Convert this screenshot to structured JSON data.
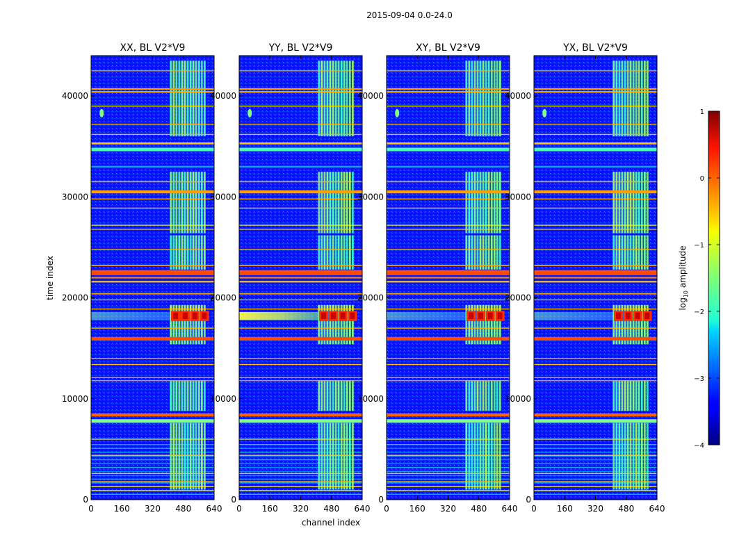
{
  "figure_title": "2015-09-04 0.0-24.0",
  "chart_data": {
    "type": "heatmap",
    "title": "2015-09-04 0.0-24.0",
    "xlabel": "channel index",
    "ylabel": "time index",
    "xlim": [
      0,
      640
    ],
    "ylim": [
      0,
      44000
    ],
    "xticks": [
      0,
      160,
      320,
      480,
      640
    ],
    "yticks": [
      0,
      10000,
      20000,
      30000,
      40000
    ],
    "xtick_labels": [
      "0",
      "160",
      "320",
      "480",
      "640"
    ],
    "ytick_labels": [
      "0",
      "10000",
      "20000",
      "30000",
      "40000"
    ],
    "panels": [
      {
        "title": "XX, BL V2*V9",
        "uv_hotspot": false
      },
      {
        "title": "YY, BL V2*V9",
        "uv_hotspot": true
      },
      {
        "title": "XY, BL V2*V9",
        "uv_hotspot": false
      },
      {
        "title": "YX, BL V2*V9",
        "uv_hotspot": false
      }
    ],
    "colorbar": {
      "label": "log10 amplitude",
      "label_main": "log",
      "label_sub": "10",
      "label_rest": " amplitude",
      "vmin": -4,
      "vmax": 1,
      "ticks": [
        1,
        0,
        -1,
        -2,
        -3,
        -4
      ],
      "tick_labels": [
        "1",
        "0",
        "−1",
        "−2",
        "−3",
        "−4"
      ],
      "colormap": "jet"
    },
    "rfi_channel_range": [
      410,
      600
    ],
    "flagged_time_rows": [
      [
        40700,
        150,
        0.72
      ],
      [
        40400,
        150,
        0.7
      ],
      [
        39000,
        80,
        0.65
      ],
      [
        37200,
        80,
        0.7
      ],
      [
        36200,
        80,
        0.7
      ],
      [
        35300,
        200,
        0.68
      ],
      [
        34700,
        350,
        0.45
      ],
      [
        33000,
        150,
        0.3
      ],
      [
        31500,
        100,
        0.7
      ],
      [
        30500,
        300,
        0.72
      ],
      [
        29800,
        80,
        0.7
      ],
      [
        28900,
        80,
        0.68
      ],
      [
        27200,
        80,
        0.6
      ],
      [
        26800,
        80,
        0.68
      ],
      [
        24800,
        80,
        0.7
      ],
      [
        23200,
        120,
        0.72
      ],
      [
        22500,
        500,
        0.8
      ],
      [
        22000,
        150,
        0.75
      ],
      [
        21600,
        150,
        0.68
      ],
      [
        20400,
        120,
        0.72
      ],
      [
        19800,
        80,
        0.7
      ],
      [
        18900,
        80,
        0.68
      ],
      [
        17000,
        100,
        0.7
      ],
      [
        15950,
        350,
        0.8
      ],
      [
        14000,
        80,
        0.7
      ],
      [
        13400,
        80,
        0.68
      ],
      [
        12100,
        80,
        0.72
      ],
      [
        11800,
        80,
        0.7
      ],
      [
        8400,
        300,
        0.78
      ],
      [
        7800,
        350,
        0.5
      ],
      [
        6000,
        80,
        0.6
      ],
      [
        4400,
        80,
        0.68
      ],
      [
        2600,
        80,
        0.68
      ],
      [
        1800,
        80,
        0.7
      ],
      [
        1300,
        80,
        0.65
      ],
      [
        900,
        80,
        0.6
      ],
      [
        42500,
        80,
        0.7
      ]
    ]
  }
}
